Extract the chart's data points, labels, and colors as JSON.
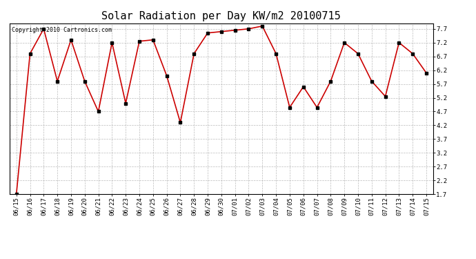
{
  "title": "Solar Radiation per Day KW/m2 20100715",
  "copyright": "Copyright 2010 Cartronics.com",
  "labels": [
    "06/15",
    "06/16",
    "06/17",
    "06/18",
    "06/19",
    "06/20",
    "06/21",
    "06/22",
    "06/23",
    "06/24",
    "06/25",
    "06/26",
    "06/27",
    "06/28",
    "06/29",
    "06/30",
    "07/01",
    "07/02",
    "07/03",
    "07/04",
    "07/05",
    "07/06",
    "07/07",
    "07/08",
    "07/09",
    "07/10",
    "07/11",
    "07/12",
    "07/13",
    "07/14",
    "07/15"
  ],
  "values": [
    1.7,
    6.8,
    7.7,
    5.8,
    7.3,
    5.8,
    4.7,
    7.2,
    5.0,
    7.25,
    7.3,
    6.0,
    4.3,
    6.8,
    7.55,
    7.6,
    7.65,
    7.7,
    7.8,
    6.8,
    4.85,
    5.6,
    4.85,
    5.8,
    7.2,
    6.8,
    5.8,
    5.25,
    7.2,
    6.8,
    6.1
  ],
  "line_color": "#cc0000",
  "marker_color": "#000000",
  "marker_size": 3,
  "bg_color": "#ffffff",
  "grid_color": "#aaaaaa",
  "ylim": [
    1.7,
    7.9
  ],
  "yticks": [
    1.7,
    2.2,
    2.7,
    3.2,
    3.7,
    4.2,
    4.7,
    5.2,
    5.7,
    6.2,
    6.7,
    7.2,
    7.7
  ],
  "title_fontsize": 11,
  "tick_fontsize": 6.5,
  "copyright_fontsize": 6
}
